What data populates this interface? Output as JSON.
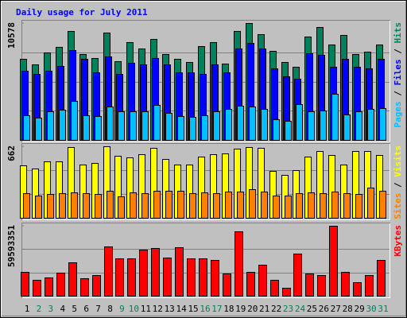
{
  "title": "Daily usage for July 2011",
  "legend_separator": " / ",
  "chart_data": [
    {
      "type": "bar",
      "series": [
        {
          "name": "Hits",
          "color": "#00805c",
          "values": [
            7361,
            6861,
            7933,
            8433,
            9863,
            7790,
            7433,
            9720,
            7147,
            8862,
            8291,
            9148,
            7790,
            7361,
            7076,
            8505,
            8862,
            6933,
            9863,
            10578,
            9577,
            8076,
            7076,
            6647,
            9363,
            10220,
            8648,
            9506,
            7790,
            8005,
            8648
          ]
        },
        {
          "name": "Files",
          "color": "#0000ff",
          "values": [
            6289,
            6003,
            6289,
            6718,
            8148,
            7361,
            6146,
            7576,
            6003,
            7004,
            6861,
            7433,
            6861,
            6146,
            6146,
            6003,
            6861,
            6146,
            8291,
            8791,
            8291,
            6504,
            5789,
            5575,
            7862,
            7719,
            6647,
            7361,
            6647,
            6504,
            7361
          ]
        },
        {
          "name": "Pages",
          "color": "#00c0ff",
          "values": [
            2216,
            2001,
            2573,
            2716,
            3502,
            2216,
            2144,
            3002,
            2573,
            2573,
            2573,
            3145,
            2430,
            2144,
            2073,
            2216,
            2573,
            2787,
            3073,
            3002,
            2787,
            1858,
            1715,
            3216,
            2573,
            2644,
            4145,
            2287,
            2573,
            2787,
            2859
          ]
        }
      ],
      "ylim": [
        0,
        10578
      ],
      "yticks": [
        10578
      ],
      "grid_divisions": 4
    },
    {
      "type": "bar",
      "series": [
        {
          "name": "Visits",
          "color": "#ffff00",
          "values": [
            486,
            456,
            523,
            523,
            655,
            493,
            508,
            662,
            574,
            559,
            589,
            648,
            545,
            493,
            493,
            567,
            589,
            596,
            640,
            655,
            648,
            434,
            397,
            442,
            567,
            618,
            581,
            493,
            618,
            618,
            581
          ]
        },
        {
          "name": "Sites",
          "color": "#ff8000",
          "values": [
            228,
            206,
            221,
            228,
            236,
            228,
            221,
            250,
            199,
            236,
            228,
            250,
            250,
            250,
            228,
            236,
            228,
            243,
            243,
            265,
            243,
            206,
            206,
            228,
            236,
            228,
            243,
            228,
            221,
            280,
            250
          ]
        }
      ],
      "ylim": [
        0,
        662
      ],
      "yticks": [
        662
      ],
      "grid_divisions": 3
    },
    {
      "type": "bar",
      "categories": [
        "1",
        "2",
        "3",
        "4",
        "5",
        "6",
        "7",
        "8",
        "9",
        "10",
        "11",
        "12",
        "13",
        "14",
        "15",
        "16",
        "17",
        "18",
        "19",
        "20",
        "21",
        "22",
        "23",
        "24",
        "25",
        "26",
        "27",
        "28",
        "29",
        "30",
        "31"
      ],
      "category_colors": [
        "#000000",
        "#00805c",
        "#00805c",
        "#000000",
        "#000000",
        "#000000",
        "#000000",
        "#000000",
        "#00805c",
        "#00805c",
        "#000000",
        "#000000",
        "#000000",
        "#000000",
        "#000000",
        "#00805c",
        "#00805c",
        "#000000",
        "#000000",
        "#000000",
        "#000000",
        "#000000",
        "#00805c",
        "#00805c",
        "#000000",
        "#000000",
        "#000000",
        "#000000",
        "#000000",
        "#00805c",
        "#00805c"
      ],
      "series": [
        {
          "name": "KBytes",
          "color": "#ff0000",
          "values": [
            20315910,
            13543940,
            15575531,
            19638713,
            28442274,
            14898338,
            17607127,
            41986263,
            31828261,
            31828261,
            39277452,
            40631860,
            32505459,
            41309055,
            31828261,
            31828261,
            30473865,
            18961516,
            54852957,
            20315910,
            26410683,
            13543940,
            6771970,
            35891441,
            18961516,
            17607127,
            59593351,
            20315910,
            11512349,
            17607127,
            30473865
          ]
        }
      ],
      "ylim": [
        0,
        59593351
      ],
      "yticks": [
        59593351
      ],
      "grid_divisions": 3
    }
  ]
}
